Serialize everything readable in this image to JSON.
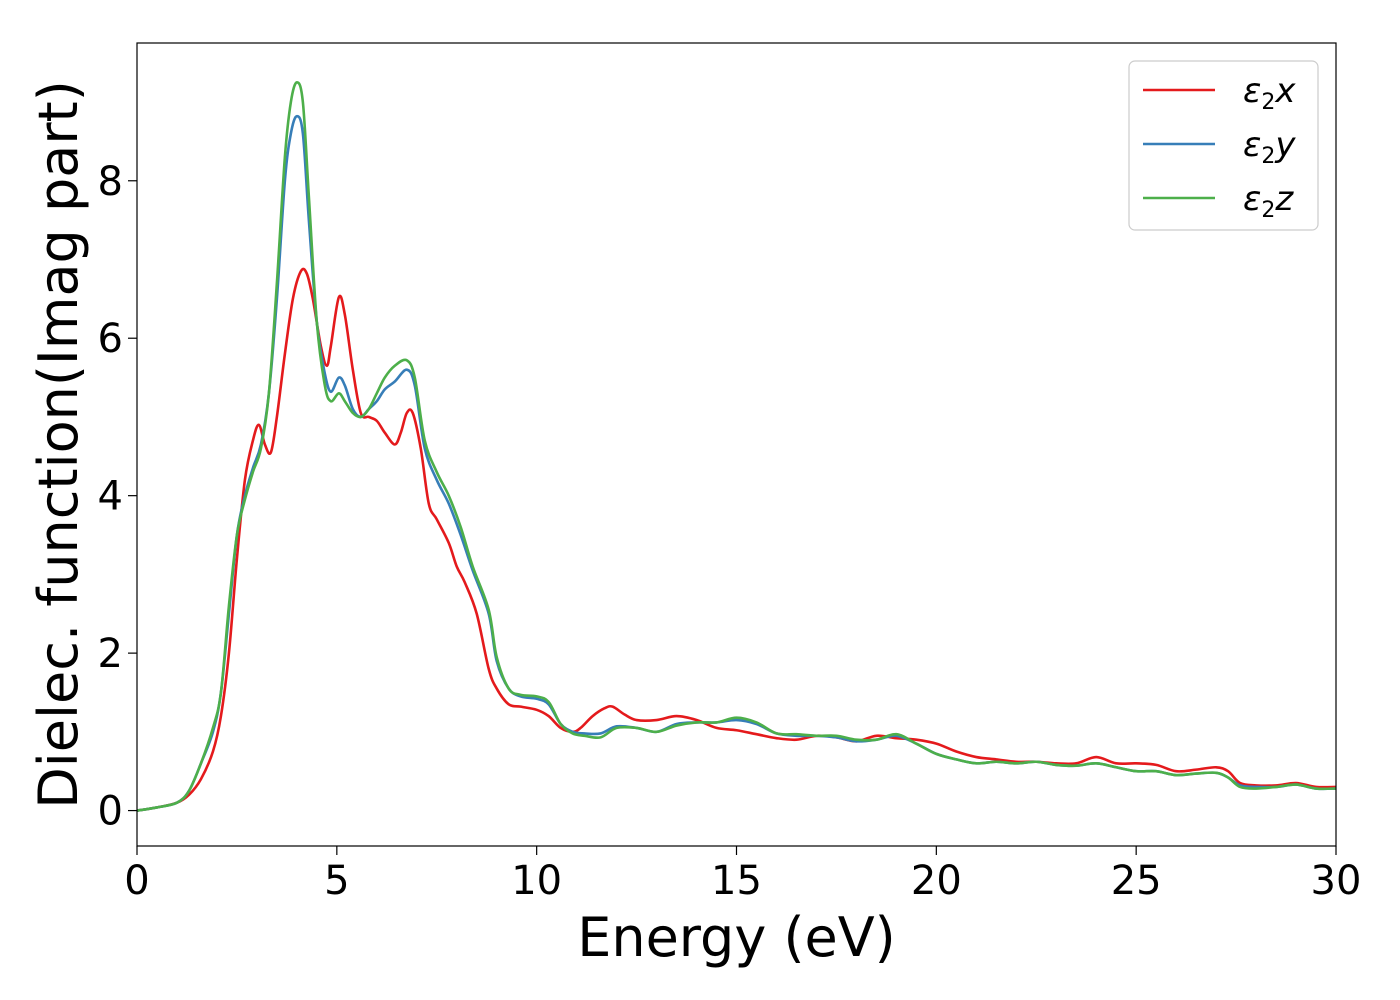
{
  "chart_data": {
    "type": "line",
    "title": "",
    "xlabel": "Energy (eV)",
    "ylabel": "Dielec. function(Imag part)",
    "xlim": [
      0,
      30
    ],
    "ylim": [
      -0.45,
      9.75
    ],
    "xticks": [
      0,
      5,
      10,
      15,
      20,
      25,
      30
    ],
    "yticks": [
      0,
      2,
      4,
      6,
      8
    ],
    "grid": false,
    "legend_position": "top-right",
    "series": [
      {
        "name": "ε₂x",
        "legend_main": "ε",
        "legend_sub": "2",
        "legend_suffix": "x",
        "color": "#e41a1c",
        "x": [
          0,
          0.5,
          1.0,
          1.3,
          1.6,
          1.9,
          2.1,
          2.3,
          2.5,
          2.7,
          2.9,
          3.05,
          3.2,
          3.35,
          3.5,
          3.7,
          3.9,
          4.1,
          4.25,
          4.4,
          4.6,
          4.75,
          4.85,
          5.05,
          5.2,
          5.4,
          5.6,
          5.8,
          6.0,
          6.2,
          6.45,
          6.6,
          6.75,
          6.9,
          7.1,
          7.3,
          7.5,
          7.8,
          8.0,
          8.2,
          8.5,
          8.8,
          9.0,
          9.3,
          9.6,
          10.0,
          10.3,
          10.6,
          10.9,
          11.1,
          11.4,
          11.7,
          11.9,
          12.2,
          12.5,
          13.0,
          13.5,
          14.0,
          14.5,
          15.0,
          15.5,
          16.0,
          16.5,
          17.0,
          17.5,
          18.0,
          18.5,
          19.0,
          19.5,
          20.0,
          20.5,
          21.0,
          21.5,
          22.0,
          22.5,
          23.0,
          23.5,
          24.0,
          24.5,
          25.0,
          25.5,
          26.0,
          26.5,
          27.0,
          27.3,
          27.6,
          28.0,
          28.5,
          29.0,
          29.5,
          30.0
        ],
        "y": [
          0.0,
          0.04,
          0.1,
          0.2,
          0.4,
          0.75,
          1.2,
          2.0,
          3.2,
          4.2,
          4.7,
          4.9,
          4.65,
          4.55,
          5.0,
          5.8,
          6.5,
          6.85,
          6.82,
          6.5,
          5.9,
          5.65,
          5.9,
          6.52,
          6.3,
          5.6,
          5.05,
          5.0,
          4.95,
          4.8,
          4.65,
          4.8,
          5.05,
          5.05,
          4.6,
          3.9,
          3.7,
          3.4,
          3.1,
          2.9,
          2.5,
          1.8,
          1.55,
          1.35,
          1.32,
          1.28,
          1.2,
          1.05,
          1.0,
          1.05,
          1.2,
          1.3,
          1.32,
          1.22,
          1.15,
          1.15,
          1.2,
          1.15,
          1.05,
          1.02,
          0.97,
          0.92,
          0.9,
          0.95,
          0.93,
          0.88,
          0.95,
          0.92,
          0.9,
          0.85,
          0.75,
          0.68,
          0.65,
          0.62,
          0.62,
          0.6,
          0.6,
          0.68,
          0.6,
          0.6,
          0.58,
          0.5,
          0.52,
          0.55,
          0.5,
          0.35,
          0.32,
          0.32,
          0.35,
          0.3,
          0.3
        ]
      },
      {
        "name": "ε₂y",
        "legend_main": "ε",
        "legend_sub": "2",
        "legend_suffix": "y",
        "color": "#377eb8",
        "x": [
          0,
          0.5,
          1.0,
          1.3,
          1.6,
          1.9,
          2.1,
          2.3,
          2.5,
          2.7,
          2.9,
          3.1,
          3.3,
          3.5,
          3.7,
          3.85,
          4.0,
          4.15,
          4.3,
          4.5,
          4.7,
          4.85,
          5.05,
          5.2,
          5.4,
          5.6,
          5.8,
          6.0,
          6.2,
          6.45,
          6.75,
          6.95,
          7.2,
          7.5,
          7.8,
          8.1,
          8.4,
          8.8,
          9.0,
          9.3,
          9.6,
          10.0,
          10.3,
          10.6,
          10.9,
          11.2,
          11.6,
          12.0,
          12.5,
          13.0,
          13.5,
          14.0,
          14.5,
          15.0,
          15.5,
          16.0,
          16.5,
          17.0,
          17.5,
          18.0,
          18.5,
          19.0,
          19.5,
          20.0,
          20.5,
          21.0,
          21.5,
          22.0,
          22.5,
          23.0,
          23.5,
          24.0,
          24.5,
          25.0,
          25.5,
          26.0,
          26.5,
          27.0,
          27.3,
          27.6,
          28.0,
          28.5,
          29.0,
          29.5,
          30.0
        ],
        "y": [
          0.0,
          0.04,
          0.1,
          0.25,
          0.6,
          1.0,
          1.5,
          2.5,
          3.5,
          4.0,
          4.35,
          4.65,
          5.3,
          6.5,
          8.0,
          8.6,
          8.82,
          8.6,
          7.5,
          6.2,
          5.55,
          5.32,
          5.5,
          5.4,
          5.1,
          5.0,
          5.1,
          5.2,
          5.35,
          5.45,
          5.6,
          5.4,
          4.6,
          4.2,
          3.9,
          3.5,
          3.05,
          2.5,
          1.9,
          1.55,
          1.45,
          1.42,
          1.35,
          1.1,
          1.0,
          0.98,
          0.98,
          1.07,
          1.05,
          1.0,
          1.1,
          1.12,
          1.12,
          1.15,
          1.1,
          0.98,
          0.95,
          0.95,
          0.93,
          0.88,
          0.9,
          0.95,
          0.85,
          0.72,
          0.65,
          0.6,
          0.62,
          0.6,
          0.62,
          0.58,
          0.57,
          0.6,
          0.55,
          0.5,
          0.5,
          0.45,
          0.47,
          0.48,
          0.42,
          0.32,
          0.3,
          0.3,
          0.33,
          0.28,
          0.28
        ]
      },
      {
        "name": "ε₂z",
        "legend_main": "ε",
        "legend_sub": "2",
        "legend_suffix": "z",
        "color": "#4daf4a",
        "x": [
          0,
          0.5,
          1.0,
          1.3,
          1.6,
          1.9,
          2.1,
          2.3,
          2.5,
          2.7,
          2.9,
          3.1,
          3.3,
          3.5,
          3.7,
          3.85,
          4.0,
          4.15,
          4.3,
          4.5,
          4.7,
          4.85,
          5.05,
          5.2,
          5.4,
          5.6,
          5.8,
          6.0,
          6.2,
          6.45,
          6.75,
          6.95,
          7.2,
          7.5,
          7.8,
          8.1,
          8.4,
          8.8,
          9.0,
          9.3,
          9.6,
          10.0,
          10.3,
          10.6,
          10.9,
          11.2,
          11.6,
          12.0,
          12.5,
          13.0,
          13.5,
          14.0,
          14.5,
          15.0,
          15.5,
          16.0,
          16.5,
          17.0,
          17.5,
          18.0,
          18.5,
          19.0,
          19.5,
          20.0,
          20.5,
          21.0,
          21.5,
          22.0,
          22.5,
          23.0,
          23.5,
          24.0,
          24.5,
          25.0,
          25.5,
          26.0,
          26.5,
          27.0,
          27.3,
          27.6,
          28.0,
          28.5,
          29.0,
          29.5,
          30.0
        ],
        "y": [
          0.0,
          0.04,
          0.1,
          0.25,
          0.6,
          1.05,
          1.5,
          2.6,
          3.5,
          3.95,
          4.3,
          4.6,
          5.3,
          6.7,
          8.3,
          9.0,
          9.25,
          9.0,
          7.8,
          6.2,
          5.4,
          5.2,
          5.3,
          5.2,
          5.05,
          5.0,
          5.1,
          5.3,
          5.5,
          5.65,
          5.72,
          5.5,
          4.7,
          4.3,
          4.0,
          3.6,
          3.1,
          2.55,
          1.95,
          1.55,
          1.47,
          1.45,
          1.38,
          1.1,
          0.98,
          0.95,
          0.93,
          1.05,
          1.05,
          1.0,
          1.08,
          1.12,
          1.12,
          1.18,
          1.12,
          0.98,
          0.97,
          0.95,
          0.95,
          0.9,
          0.9,
          0.97,
          0.85,
          0.72,
          0.65,
          0.6,
          0.62,
          0.6,
          0.62,
          0.58,
          0.57,
          0.6,
          0.55,
          0.5,
          0.5,
          0.45,
          0.47,
          0.48,
          0.42,
          0.3,
          0.28,
          0.3,
          0.33,
          0.28,
          0.28
        ]
      }
    ]
  }
}
